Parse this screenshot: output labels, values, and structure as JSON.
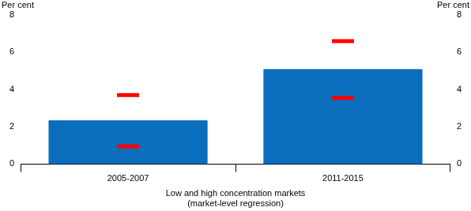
{
  "chart_data": {
    "type": "bar",
    "categories": [
      "2005-2007",
      "2011-2015"
    ],
    "xlabel": "Low and high concentration markets\n(market-level regression)",
    "ylabel": "Per cent",
    "y2label": "Per cent",
    "series": [
      {
        "type": "bar",
        "color": "#0a6ebd",
        "values": [
          2.35,
          5.1
        ]
      },
      {
        "type": "scatter",
        "marker": "dash",
        "color": "#ff0000",
        "values": [
          3.7,
          6.6
        ]
      },
      {
        "type": "scatter",
        "marker": "dash",
        "color": "#ff0000",
        "values": [
          0.95,
          3.55
        ]
      }
    ],
    "ylim": [
      0,
      8
    ],
    "yticks": [
      0,
      2,
      4,
      6,
      8
    ],
    "y2lim": [
      0,
      8
    ],
    "y2ticks": [
      0,
      2,
      4,
      6,
      8
    ],
    "grid": false
  }
}
